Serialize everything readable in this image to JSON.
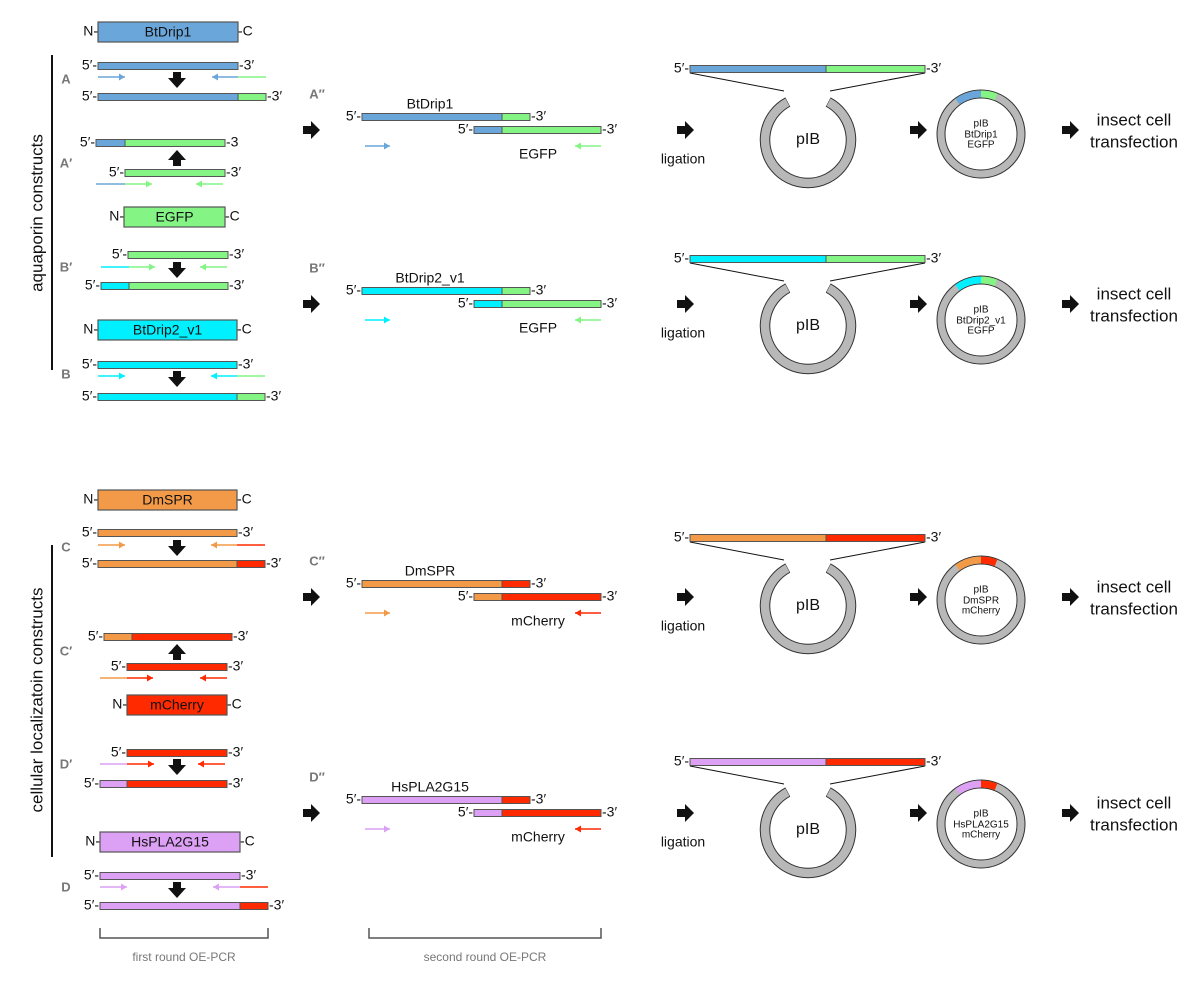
{
  "colors": {
    "BtDrip1": "#6aa6da",
    "EGFP": "#84f584",
    "BtDrip2_v1": "#00f0ff",
    "DmSPR": "#f39a48",
    "mCherry": "#ff2a00",
    "HsPLA2G15": "#dca0f4",
    "plasmid": "#b8b8b8",
    "outline": "#555555",
    "bracket": "#555555"
  },
  "terminals": {
    "n": "N-",
    "c": "-C",
    "five": "5′-",
    "three": "-3′",
    "three_noprime": "-3",
    "five_only": "5′"
  },
  "groups": {
    "top": "aquaporin constructs",
    "bottom": "cellular localizatoin constructs"
  },
  "proteins": [
    "BtDrip1",
    "EGFP",
    "BtDrip2_v1",
    "DmSPR",
    "mCherry",
    "HsPLA2G15"
  ],
  "steps": {
    "A": "A",
    "A1": "A′",
    "B1": "B′",
    "B": "B",
    "C": "C",
    "C1": "C′",
    "D1": "D′",
    "D": "D",
    "A2": "A′′",
    "B2": "B′′",
    "C2": "C′′",
    "D2": "D′′"
  },
  "second_round": [
    {
      "step": "A′′",
      "insert": "BtDrip1",
      "tag": "EGFP"
    },
    {
      "step": "B′′",
      "insert": "BtDrip2_v1",
      "tag": "EGFP"
    },
    {
      "step": "C′′",
      "insert": "DmSPR",
      "tag": "mCherry"
    },
    {
      "step": "D′′",
      "insert": "HsPLA2G15",
      "tag": "mCherry"
    }
  ],
  "ligation_label": "ligation",
  "vector_label": "pIB",
  "final_plasmids": [
    [
      "pIB",
      "BtDrip1",
      "EGFP"
    ],
    [
      "pIB",
      "BtDrip2_v1",
      "EGFP"
    ],
    [
      "pIB",
      "DmSPR",
      "mCherry"
    ],
    [
      "pIB",
      "HsPLA2G15",
      "mCherry"
    ]
  ],
  "outcome": [
    "insect cell",
    "transfection"
  ],
  "brackets": {
    "first": "first round OE-PCR",
    "second": "second round OE-PCR"
  }
}
